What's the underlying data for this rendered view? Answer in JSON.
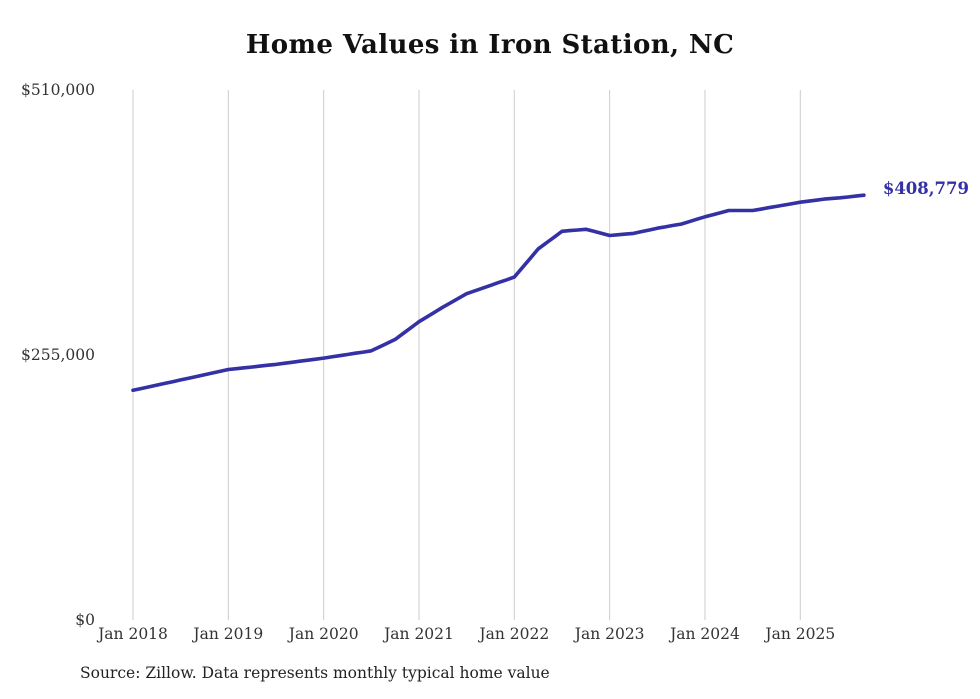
{
  "title": "Home Values in Iron Station, NC",
  "source_note": "Source: Zillow. Data represents monthly typical home value",
  "chart_data": {
    "type": "line",
    "title": "Home Values in Iron Station, NC",
    "xlabel": "",
    "ylabel": "",
    "ylim": [
      0,
      510000
    ],
    "grid": "vertical",
    "legend": "none",
    "line_color": "#3431a5",
    "grid_color": "#cccccc",
    "tick_label_color": "#333333",
    "title_color": "#111111",
    "y_ticks": [
      {
        "value": 0,
        "label": "$0"
      },
      {
        "value": 255000,
        "label": "$255,000"
      },
      {
        "value": 510000,
        "label": "$510,000"
      }
    ],
    "x_ticks": [
      {
        "x": "2018-01",
        "label": "Jan 2018"
      },
      {
        "x": "2019-01",
        "label": "Jan 2019"
      },
      {
        "x": "2020-01",
        "label": "Jan 2020"
      },
      {
        "x": "2021-01",
        "label": "Jan 2021"
      },
      {
        "x": "2022-01",
        "label": "Jan 2022"
      },
      {
        "x": "2023-01",
        "label": "Jan 2023"
      },
      {
        "x": "2024-01",
        "label": "Jan 2024"
      },
      {
        "x": "2025-01",
        "label": "Jan 2025"
      }
    ],
    "annotation": {
      "text": "$408,779",
      "x": "2025-09",
      "value": 408779
    },
    "x": [
      "2018-01",
      "2018-02",
      "2018-03",
      "2018-04",
      "2018-05",
      "2018-06",
      "2018-07",
      "2018-08",
      "2018-09",
      "2018-10",
      "2018-11",
      "2018-12",
      "2019-01",
      "2019-02",
      "2019-03",
      "2019-04",
      "2019-05",
      "2019-06",
      "2019-07",
      "2019-08",
      "2019-09",
      "2019-10",
      "2019-11",
      "2019-12",
      "2020-01",
      "2020-02",
      "2020-03",
      "2020-04",
      "2020-05",
      "2020-06",
      "2020-07",
      "2020-08",
      "2020-09",
      "2020-10",
      "2020-11",
      "2020-12",
      "2021-01",
      "2021-02",
      "2021-03",
      "2021-04",
      "2021-05",
      "2021-06",
      "2021-07",
      "2021-08",
      "2021-09",
      "2021-10",
      "2021-11",
      "2021-12",
      "2022-01",
      "2022-02",
      "2022-03",
      "2022-04",
      "2022-05",
      "2022-06",
      "2022-07",
      "2022-08",
      "2022-09",
      "2022-10",
      "2022-11",
      "2022-12",
      "2023-01",
      "2023-02",
      "2023-03",
      "2023-04",
      "2023-05",
      "2023-06",
      "2023-07",
      "2023-08",
      "2023-09",
      "2023-10",
      "2023-11",
      "2023-12",
      "2024-01",
      "2024-02",
      "2024-03",
      "2024-04",
      "2024-05",
      "2024-06",
      "2024-07",
      "2024-08",
      "2024-09",
      "2024-10",
      "2024-11",
      "2024-12",
      "2025-01",
      "2025-02",
      "2025-03",
      "2025-04",
      "2025-05",
      "2025-06",
      "2025-07",
      "2025-08",
      "2025-09"
    ],
    "series": [
      {
        "name": "Typical home value",
        "values": [
          221000,
          222700,
          224300,
          226000,
          227700,
          229300,
          231000,
          232700,
          234300,
          236000,
          237700,
          239300,
          241000,
          241800,
          242700,
          243500,
          244300,
          245200,
          246000,
          247000,
          248000,
          249000,
          250000,
          251000,
          252000,
          253200,
          254300,
          255500,
          256700,
          257800,
          259000,
          262700,
          266300,
          270000,
          275700,
          281300,
          287000,
          291700,
          296300,
          301000,
          305300,
          309700,
          314000,
          316700,
          319300,
          322000,
          324700,
          327300,
          330000,
          339000,
          348000,
          357000,
          362700,
          368300,
          374000,
          374700,
          375300,
          376000,
          374000,
          372000,
          370000,
          370700,
          371300,
          372000,
          373700,
          375300,
          377000,
          378300,
          379700,
          381000,
          383300,
          385700,
          388000,
          390000,
          392000,
          394000,
          394000,
          394000,
          394000,
          395300,
          396700,
          398000,
          399300,
          400700,
          402000,
          403000,
          404000,
          405000,
          405700,
          406300,
          407000,
          407900,
          408779
        ]
      }
    ]
  }
}
